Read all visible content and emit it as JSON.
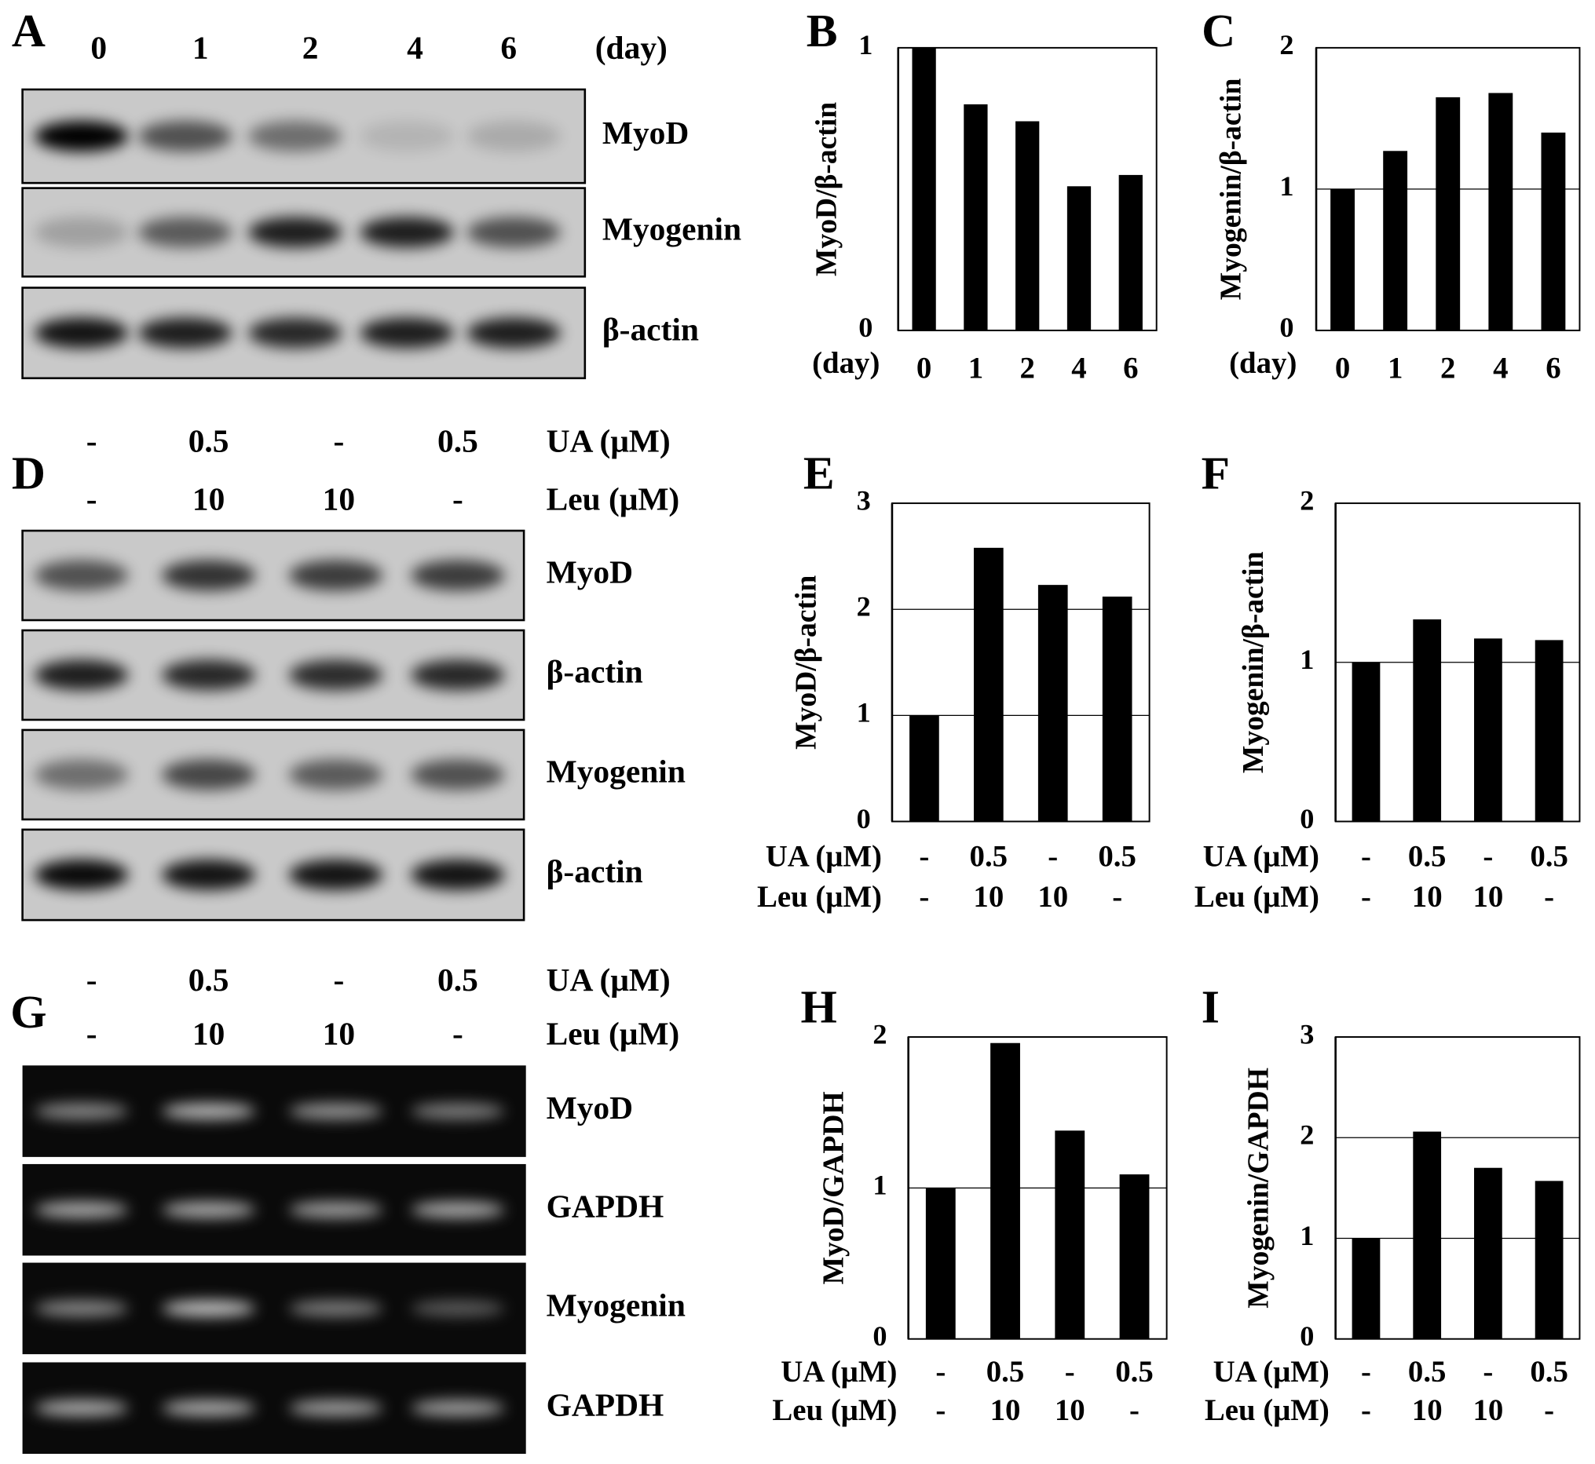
{
  "blots": [
    {
      "label": "A",
      "lanes": [
        [
          "0",
          "1",
          "2",
          "4",
          "6"
        ]
      ],
      "lane_row_labels": [
        "(day)"
      ],
      "rows": [
        "MyoD",
        "Myogenin",
        "β-actin"
      ]
    },
    {
      "label": "D",
      "lanes": [
        [
          "-",
          "0.5",
          "-",
          "0.5"
        ],
        [
          "-",
          "10",
          "10",
          "-"
        ]
      ],
      "lane_row_labels": [
        "UA (μM)",
        "Leu (μM)"
      ],
      "rows": [
        "MyoD",
        "β-actin",
        "Myogenin",
        "β-actin"
      ]
    },
    {
      "label": "G",
      "lanes": [
        [
          "-",
          "0.5",
          "-",
          "0.5"
        ],
        [
          "-",
          "10",
          "10",
          "-"
        ]
      ],
      "lane_row_labels": [
        "UA (μM)",
        "Leu (μM)"
      ],
      "rows": [
        "MyoD",
        "GAPDH",
        "Myogenin",
        "GAPDH"
      ]
    }
  ],
  "chart_data": [
    {
      "type": "bar",
      "label": "B",
      "ylabel": "MyoD/β-actin",
      "xlabel": "(day)",
      "categories": [
        "0",
        "1",
        "2",
        "4",
        "6"
      ],
      "values": [
        1,
        0.8,
        0.74,
        0.51,
        0.55
      ],
      "color": "#000000",
      "ylim": [
        0,
        1
      ],
      "yticks": [
        0,
        1
      ],
      "grid": true
    },
    {
      "type": "bar",
      "label": "C",
      "ylabel": "Myogenin/β-actin",
      "xlabel": "(day)",
      "categories": [
        "0",
        "1",
        "2",
        "4",
        "6"
      ],
      "values": [
        1,
        1.27,
        1.65,
        1.68,
        1.4
      ],
      "color": "#000000",
      "ylim": [
        0,
        2
      ],
      "yticks": [
        0,
        1,
        2
      ],
      "grid": true
    },
    {
      "type": "bar",
      "label": "E",
      "ylabel": "MyoD/β-actin",
      "category_row_labels": [
        "UA (μM)",
        "Leu (μM)"
      ],
      "categories": [
        "-",
        "0.5",
        "-",
        "0.5"
      ],
      "categories2": [
        "-",
        "10",
        "10",
        "-"
      ],
      "values": [
        1,
        2.58,
        2.23,
        2.12
      ],
      "color": "#000000",
      "ylim": [
        0,
        3
      ],
      "yticks": [
        0,
        1,
        2,
        3
      ],
      "grid": true
    },
    {
      "type": "bar",
      "label": "F",
      "ylabel": "Myogenin/β-actin",
      "category_row_labels": [
        "UA (μM)",
        "Leu (μM)"
      ],
      "categories": [
        "-",
        "0.5",
        "-",
        "0.5"
      ],
      "categories2": [
        "-",
        "10",
        "10",
        "-"
      ],
      "values": [
        1,
        1.27,
        1.15,
        1.14
      ],
      "color": "#000000",
      "ylim": [
        0,
        2
      ],
      "yticks": [
        0,
        1,
        2
      ],
      "grid": true
    },
    {
      "type": "bar",
      "label": "H",
      "ylabel": "MyoD/GAPDH",
      "category_row_labels": [
        "UA (μM)",
        "Leu (μM)"
      ],
      "categories": [
        "-",
        "0.5",
        "-",
        "0.5"
      ],
      "categories2": [
        "-",
        "10",
        "10",
        "-"
      ],
      "values": [
        1,
        1.96,
        1.38,
        1.09
      ],
      "color": "#000000",
      "ylim": [
        0,
        2
      ],
      "yticks": [
        0,
        1,
        2
      ],
      "grid": true
    },
    {
      "type": "bar",
      "label": "I",
      "ylabel": "Myogenin/GAPDH",
      "category_row_labels": [
        "UA (μM)",
        "Leu (μM)"
      ],
      "categories": [
        "-",
        "0.5",
        "-",
        "0.5"
      ],
      "categories2": [
        "-",
        "10",
        "10",
        "-"
      ],
      "values": [
        1,
        2.06,
        1.7,
        1.57
      ],
      "color": "#000000",
      "ylim": [
        0,
        3
      ],
      "yticks": [
        0,
        1,
        2,
        3
      ],
      "grid": true
    }
  ]
}
